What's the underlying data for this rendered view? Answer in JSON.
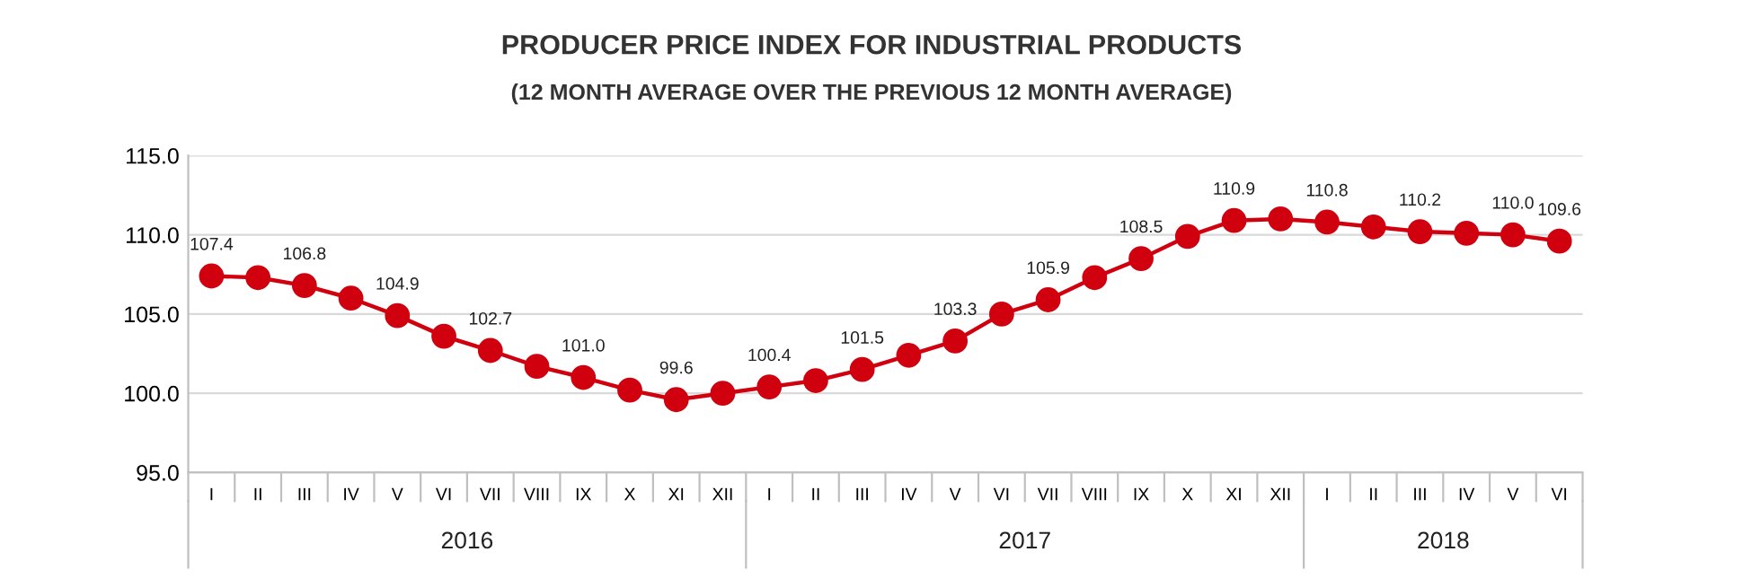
{
  "chart_data": {
    "type": "line",
    "title": "PRODUCER PRICE INDEX FOR INDUSTRIAL PRODUCTS",
    "subtitle": "(12 MONTH AVERAGE OVER THE PREVIOUS 12 MONTH AVERAGE)",
    "categories": [
      "I",
      "II",
      "III",
      "IV",
      "V",
      "VI",
      "VII",
      "VIII",
      "IX",
      "X",
      "XI",
      "XII",
      "I",
      "II",
      "III",
      "IV",
      "V",
      "VI",
      "VII",
      "VIII",
      "IX",
      "X",
      "XI",
      "XII",
      "I",
      "II",
      "III",
      "IV",
      "V",
      "VI"
    ],
    "series": [
      {
        "color": "#d0000f",
        "values": [
          107.4,
          107.3,
          106.8,
          106.0,
          104.9,
          103.6,
          102.7,
          101.7,
          101.0,
          100.2,
          99.6,
          100.0,
          100.4,
          100.8,
          101.5,
          102.4,
          103.3,
          105.0,
          105.9,
          107.3,
          108.5,
          109.9,
          110.9,
          111.0,
          110.8,
          110.5,
          110.2,
          110.1,
          110.0,
          109.6
        ],
        "value_labels": [
          "107.4",
          null,
          "106.8",
          null,
          "104.9",
          null,
          "102.7",
          null,
          "101.0",
          null,
          "99.6",
          null,
          "100.4",
          null,
          "101.5",
          null,
          "103.3",
          null,
          "105.9",
          null,
          "108.5",
          null,
          "110.9",
          null,
          "110.8",
          null,
          "110.2",
          null,
          "110.0",
          "109.6"
        ]
      }
    ],
    "annotations": [
      "2016",
      "2017",
      "2018"
    ],
    "ylim": [
      95,
      115
    ],
    "yticks": [
      {
        "value": 95,
        "label": "95.0"
      },
      {
        "value": 100,
        "label": "100.0"
      },
      {
        "value": 105,
        "label": "105.0"
      },
      {
        "value": 110,
        "label": "110.0"
      },
      {
        "value": 115,
        "label": "115.0"
      }
    ],
    "grid": "y",
    "marker": "circle",
    "line_style": "solid",
    "legend": false
  }
}
